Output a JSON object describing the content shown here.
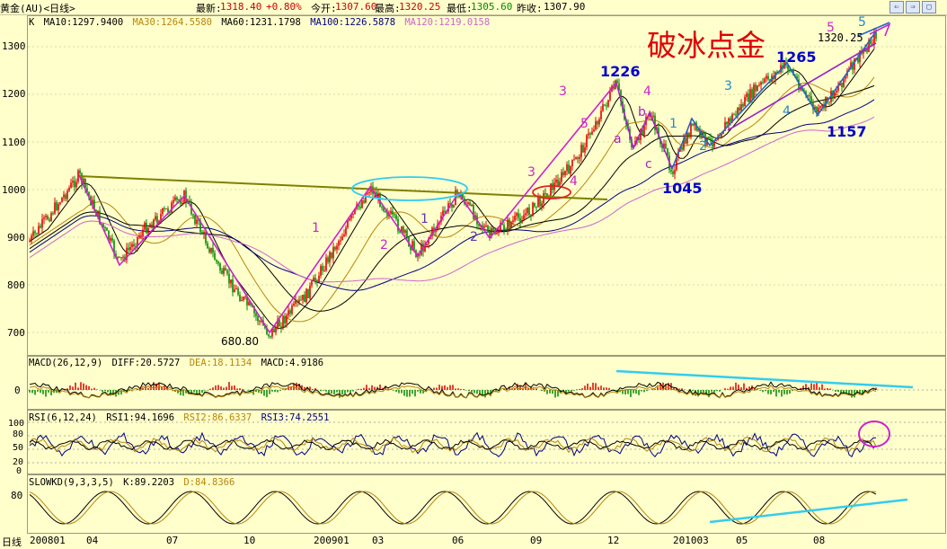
{
  "title_bar": {
    "instrument": "黄金(AU)<日线>",
    "latest_label": "最新:",
    "latest_value": "1318.40",
    "change": "+0.80%",
    "open_label": "今开:",
    "open_value": "1307.60",
    "high_label": "最高:",
    "high_value": "1320.25",
    "low_label": "最低:",
    "low_value": "1305.60",
    "prev_label": "昨收:",
    "prev_value": "1307.90",
    "buttons": [
      "⇐",
      "⇒",
      "▢"
    ]
  },
  "main_panel": {
    "k_label": "K",
    "ma": [
      {
        "label": "MA10:1297.9400",
        "color": "#000000"
      },
      {
        "label": "MA30:1264.5580",
        "color": "#b8860b"
      },
      {
        "label": "MA60:1231.1798",
        "color": "#000000"
      },
      {
        "label": "MA100:1226.5878",
        "color": "#000080"
      },
      {
        "label": "MA120:1219.0158",
        "color": "#cc66cc"
      }
    ],
    "y_ticks": [
      "1300",
      "1200",
      "1100",
      "1000",
      "900",
      "800",
      "700"
    ]
  },
  "macd_panel": {
    "label": "MACD(26,12,9)",
    "diff": "DIFF:20.5727",
    "dea": "DEA:18.1134",
    "macd": "MACD:4.9186",
    "y_ticks": [
      "0"
    ]
  },
  "rsi_panel": {
    "label": "RSI(6,12,24)",
    "rsi1": "RSI1:94.1696",
    "rsi2": "RSI2:86.6337",
    "rsi3": "RSI3:74.2551",
    "y_ticks": [
      "100",
      "80",
      "50",
      "20",
      "0"
    ]
  },
  "kd_panel": {
    "label": "SLOWKD(9,3,3,5)",
    "k": "K:89.2203",
    "d": "D:84.8366",
    "y_ticks": [
      "80"
    ]
  },
  "x_axis": {
    "first": "日线",
    "labels": [
      "200801",
      "04",
      "07",
      "10",
      "200901",
      "03",
      "06",
      "09",
      "12",
      "201003",
      "05",
      "08"
    ]
  },
  "annotations": {
    "headline": "破冰点金",
    "low_680": "680.80",
    "price_1226": "1226",
    "price_1045": "1045",
    "price_1265": "1265",
    "price_1157": "1157",
    "price_1320": "1320.25",
    "wave_labels": [
      "1",
      "2",
      "1",
      "2",
      "3",
      "4",
      "5",
      "3",
      "4",
      "a",
      "b",
      "c",
      "1",
      "2",
      "3",
      "4",
      "5",
      "5"
    ]
  },
  "colors": {
    "up": "#dd0000",
    "down": "#008800",
    "wave_purple": "#cc22cc",
    "wave_blue": "#2288cc",
    "cyan": "#33ccee",
    "trendline": "#808000"
  }
}
